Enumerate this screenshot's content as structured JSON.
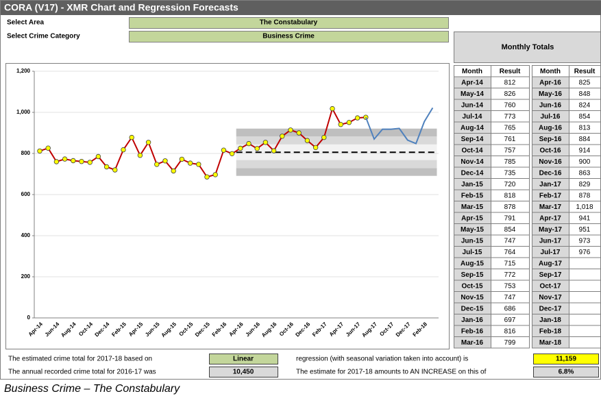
{
  "header": {
    "title": "CORA (V17) - XMR Chart and Regression Forecasts"
  },
  "selectors": [
    {
      "label": "Select Area",
      "value": "The Constabulary"
    },
    {
      "label": "Select Crime Category",
      "value": "Business Crime"
    }
  ],
  "table": {
    "title": "Monthly Totals",
    "columns": [
      "Month",
      "Result",
      "Month",
      "Result"
    ]
  },
  "chart_data": {
    "type": "line",
    "categories": [
      "Apr-14",
      "May-14",
      "Jun-14",
      "Jul-14",
      "Aug-14",
      "Sep-14",
      "Oct-14",
      "Nov-14",
      "Dec-14",
      "Jan-15",
      "Feb-15",
      "Mar-15",
      "Apr-15",
      "May-15",
      "Jun-15",
      "Jul-15",
      "Aug-15",
      "Sep-15",
      "Oct-15",
      "Nov-15",
      "Dec-15",
      "Jan-16",
      "Feb-16",
      "Mar-16",
      "Apr-16",
      "May-16",
      "Jun-16",
      "Jul-16",
      "Aug-16",
      "Sep-16",
      "Oct-16",
      "Nov-16",
      "Dec-16",
      "Jan-17",
      "Feb-17",
      "Mar-17",
      "Apr-17",
      "May-17",
      "Jun-17",
      "Jul-17",
      "Aug-17",
      "Sep-17",
      "Oct-17",
      "Nov-17",
      "Dec-17",
      "Jan-18",
      "Feb-18",
      "Mar-18"
    ],
    "xlabel_interval": 2,
    "series": [
      {
        "color": "#c00000",
        "marker_color": "#ffff00",
        "values": [
          812,
          826,
          760,
          773,
          765,
          761,
          757,
          785,
          735,
          720,
          818,
          878,
          791,
          854,
          747,
          764,
          715,
          772,
          753,
          747,
          686,
          697,
          816,
          799,
          825,
          848,
          824,
          854,
          813,
          884,
          914,
          900,
          863,
          829,
          878,
          1018,
          941,
          951,
          973,
          976,
          null,
          null,
          null,
          null,
          null,
          null,
          null,
          null
        ],
        "value_labels": [
          "812",
          "826",
          "760",
          "773",
          "765",
          "761",
          "757",
          "785",
          "735",
          "720",
          "818",
          "878",
          "791",
          "854",
          "747",
          "764",
          "715",
          "772",
          "753",
          "747",
          "686",
          "697",
          "816",
          "799",
          "825",
          "848",
          "824",
          "854",
          "813",
          "884",
          "914",
          "900",
          "863",
          "829",
          "878",
          "1,018",
          "941",
          "951",
          "973",
          "976",
          null,
          null,
          null,
          null,
          null,
          null,
          null,
          null
        ]
      },
      {
        "color": "#4f81bd",
        "values": [
          null,
          null,
          null,
          null,
          null,
          null,
          null,
          null,
          null,
          null,
          null,
          null,
          null,
          null,
          null,
          null,
          null,
          null,
          null,
          null,
          null,
          null,
          null,
          null,
          null,
          null,
          null,
          null,
          null,
          null,
          null,
          null,
          null,
          null,
          null,
          null,
          null,
          null,
          null,
          976,
          870,
          918,
          918,
          922,
          865,
          848,
          955,
          1022
        ]
      }
    ],
    "control_limits": {
      "start": "Apr-16",
      "mean": 806,
      "bands": [
        691,
        729,
        768,
        844,
        883,
        921
      ],
      "band_colors": [
        "#bfbfbf",
        "#d9d9d9",
        "#f2f2f2",
        "#d9d9d9",
        "#bfbfbf"
      ]
    },
    "ylim": [
      0,
      1200
    ],
    "yticks": [
      0,
      200,
      400,
      600,
      800,
      {
        "value": 1000,
        "label": "1,000"
      },
      {
        "value": 1200,
        "label": "1,200"
      }
    ],
    "grid": true
  },
  "summary": {
    "rows": [
      [
        "The estimated crime total for 2017-18 based on",
        "Linear",
        "regression (with seasonal variation taken into account) is",
        "11,159"
      ],
      [
        "The annual recorded crime total for 2016-17 was",
        "10,450",
        "The estimate for 2017-18 amounts to AN INCREASE on this of",
        "6.8%"
      ]
    ]
  },
  "caption": "Business Crime – The Constabulary"
}
